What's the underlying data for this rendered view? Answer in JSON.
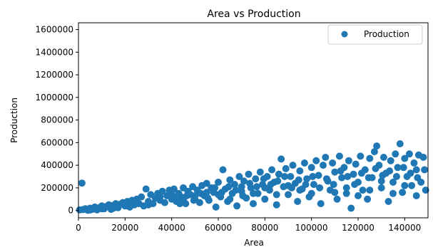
{
  "chart_data": {
    "type": "scatter",
    "title": "Area vs Production",
    "xlabel": "Area",
    "ylabel": "Production",
    "xlim": [
      0,
      150000
    ],
    "ylim": [
      -65000,
      1660000
    ],
    "xticks": [
      0,
      20000,
      40000,
      60000,
      80000,
      100000,
      120000,
      140000
    ],
    "yticks": [
      0,
      200000,
      400000,
      600000,
      800000,
      1000000,
      1200000,
      1400000,
      1600000
    ],
    "grid": false,
    "legend": {
      "placement": "top-right",
      "entries": [
        "Production"
      ]
    },
    "series": [
      {
        "name": "Production",
        "color": "#1f77b4",
        "points": [
          [
            500,
            5000
          ],
          [
            1500,
            242000
          ],
          [
            2000,
            8000
          ],
          [
            3000,
            15000
          ],
          [
            4000,
            2000
          ],
          [
            5000,
            20000
          ],
          [
            6000,
            10000
          ],
          [
            7000,
            30000
          ],
          [
            8000,
            5000
          ],
          [
            9000,
            25000
          ],
          [
            10000,
            40000
          ],
          [
            11000,
            15000
          ],
          [
            12000,
            35000
          ],
          [
            13000,
            50000
          ],
          [
            14000,
            10000
          ],
          [
            15000,
            45000
          ],
          [
            16000,
            60000
          ],
          [
            17000,
            25000
          ],
          [
            18000,
            55000
          ],
          [
            19000,
            70000
          ],
          [
            20000,
            40000
          ],
          [
            21000,
            80000
          ],
          [
            22000,
            30000
          ],
          [
            23000,
            90000
          ],
          [
            24000,
            50000
          ],
          [
            25000,
            100000
          ],
          [
            26000,
            60000
          ],
          [
            27000,
            120000
          ],
          [
            28000,
            40000
          ],
          [
            29000,
            190000
          ],
          [
            30000,
            80000
          ],
          [
            31000,
            140000
          ],
          [
            32000,
            60000
          ],
          [
            33000,
            110000
          ],
          [
            34000,
            150000
          ],
          [
            35000,
            90000
          ],
          [
            36000,
            170000
          ],
          [
            37000,
            70000
          ],
          [
            38000,
            130000
          ],
          [
            39000,
            180000
          ],
          [
            40000,
            100000
          ],
          [
            41000,
            190000
          ],
          [
            42000,
            80000
          ],
          [
            43000,
            150000
          ],
          [
            44000,
            120000
          ],
          [
            45000,
            200000
          ],
          [
            46000,
            60000
          ],
          [
            47000,
            170000
          ],
          [
            48000,
            140000
          ],
          [
            49000,
            210000
          ],
          [
            50000,
            100000
          ],
          [
            51000,
            180000
          ],
          [
            52000,
            70000
          ],
          [
            53000,
            220000
          ],
          [
            54000,
            130000
          ],
          [
            55000,
            240000
          ],
          [
            56000,
            90000
          ],
          [
            57000,
            200000
          ],
          [
            58000,
            160000
          ],
          [
            59000,
            30000
          ],
          [
            60000,
            250000
          ],
          [
            61000,
            120000
          ],
          [
            62000,
            360000
          ],
          [
            63000,
            190000
          ],
          [
            64000,
            80000
          ],
          [
            65000,
            270000
          ],
          [
            66000,
            150000
          ],
          [
            67000,
            230000
          ],
          [
            68000,
            40000
          ],
          [
            69000,
            300000
          ],
          [
            70000,
            170000
          ],
          [
            71000,
            260000
          ],
          [
            72000,
            110000
          ],
          [
            73000,
            320000
          ],
          [
            74000,
            200000
          ],
          [
            75000,
            60000
          ],
          [
            76000,
            280000
          ],
          [
            77000,
            150000
          ],
          [
            78000,
            340000
          ],
          [
            79000,
            230000
          ],
          [
            80000,
            100000
          ],
          [
            81000,
            300000
          ],
          [
            82000,
            180000
          ],
          [
            83000,
            360000
          ],
          [
            84000,
            250000
          ],
          [
            85000,
            50000
          ],
          [
            86000,
            320000
          ],
          [
            87000,
            455000
          ],
          [
            88000,
            210000
          ],
          [
            89000,
            370000
          ],
          [
            90000,
            140000
          ],
          [
            91000,
            300000
          ],
          [
            92000,
            400000
          ],
          [
            93000,
            240000
          ],
          [
            94000,
            80000
          ],
          [
            95000,
            350000
          ],
          [
            96000,
            190000
          ],
          [
            97000,
            420000
          ],
          [
            98000,
            280000
          ],
          [
            99000,
            120000
          ],
          [
            100000,
            380000
          ],
          [
            101000,
            230000
          ],
          [
            102000,
            440000
          ],
          [
            103000,
            310000
          ],
          [
            104000,
            60000
          ],
          [
            105000,
            400000
          ],
          [
            106000,
            470000
          ],
          [
            107000,
            260000
          ],
          [
            108000,
            180000
          ],
          [
            109000,
            420000
          ],
          [
            110000,
            340000
          ],
          [
            111000,
            100000
          ],
          [
            112000,
            480000
          ],
          [
            113000,
            290000
          ],
          [
            114000,
            380000
          ],
          [
            115000,
            150000
          ],
          [
            116000,
            440000
          ],
          [
            117000,
            20000
          ],
          [
            118000,
            320000
          ],
          [
            119000,
            410000
          ],
          [
            120000,
            250000
          ],
          [
            121000,
            480000
          ],
          [
            122000,
            180000
          ],
          [
            123000,
            360000
          ],
          [
            124000,
            100000
          ],
          [
            125000,
            460000
          ],
          [
            126000,
            290000
          ],
          [
            127000,
            520000
          ],
          [
            128000,
            570000
          ],
          [
            129000,
            400000
          ],
          [
            130000,
            200000
          ],
          [
            131000,
            470000
          ],
          [
            132000,
            330000
          ],
          [
            133000,
            80000
          ],
          [
            134000,
            440000
          ],
          [
            135000,
            250000
          ],
          [
            136000,
            500000
          ],
          [
            137000,
            380000
          ],
          [
            138000,
            590000
          ],
          [
            139000,
            160000
          ],
          [
            140000,
            460000
          ],
          [
            141000,
            300000
          ],
          [
            142000,
            500000
          ],
          [
            143000,
            220000
          ],
          [
            144000,
            420000
          ],
          [
            145000,
            360000
          ],
          [
            146000,
            490000
          ],
          [
            147000,
            250000
          ],
          [
            148000,
            470000
          ],
          [
            149000,
            180000
          ],
          [
            41000,
            110000
          ],
          [
            43500,
            60000
          ],
          [
            46500,
            130000
          ],
          [
            49500,
            90000
          ],
          [
            52500,
            150000
          ],
          [
            55500,
            110000
          ],
          [
            58500,
            200000
          ],
          [
            61500,
            160000
          ],
          [
            64500,
            210000
          ],
          [
            67500,
            180000
          ],
          [
            70500,
            130000
          ],
          [
            73500,
            240000
          ],
          [
            76500,
            210000
          ],
          [
            79500,
            280000
          ],
          [
            82500,
            230000
          ],
          [
            85500,
            260000
          ],
          [
            88500,
            300000
          ],
          [
            91500,
            200000
          ],
          [
            94500,
            270000
          ],
          [
            97500,
            230000
          ],
          [
            100500,
            300000
          ],
          [
            103500,
            200000
          ],
          [
            106500,
            280000
          ],
          [
            109500,
            230000
          ],
          [
            112500,
            350000
          ],
          [
            115500,
            300000
          ],
          [
            118500,
            230000
          ],
          [
            121500,
            330000
          ],
          [
            124500,
            290000
          ],
          [
            127500,
            370000
          ],
          [
            130500,
            310000
          ],
          [
            133500,
            350000
          ],
          [
            136500,
            300000
          ],
          [
            139500,
            380000
          ],
          [
            142500,
            330000
          ],
          [
            145500,
            290000
          ],
          [
            148500,
            360000
          ],
          [
            110000,
            160000
          ],
          [
            115000,
            200000
          ],
          [
            120000,
            130000
          ],
          [
            125000,
            180000
          ],
          [
            130000,
            260000
          ],
          [
            135000,
            150000
          ],
          [
            140000,
            220000
          ],
          [
            145000,
            130000
          ],
          [
            100000,
            150000
          ],
          [
            95000,
            180000
          ],
          [
            90000,
            220000
          ],
          [
            85000,
            140000
          ],
          [
            80000,
            200000
          ],
          [
            75000,
            150000
          ],
          [
            70000,
            210000
          ],
          [
            65000,
            100000
          ],
          [
            60000,
            140000
          ],
          [
            55000,
            160000
          ],
          [
            50000,
            130000
          ],
          [
            45000,
            90000
          ],
          [
            40000,
            140000
          ],
          [
            35000,
            120000
          ],
          [
            30000,
            50000
          ],
          [
            25000,
            70000
          ],
          [
            20000,
            60000
          ],
          [
            15000,
            20000
          ],
          [
            10000,
            15000
          ],
          [
            5000,
            5000
          ]
        ]
      }
    ]
  }
}
